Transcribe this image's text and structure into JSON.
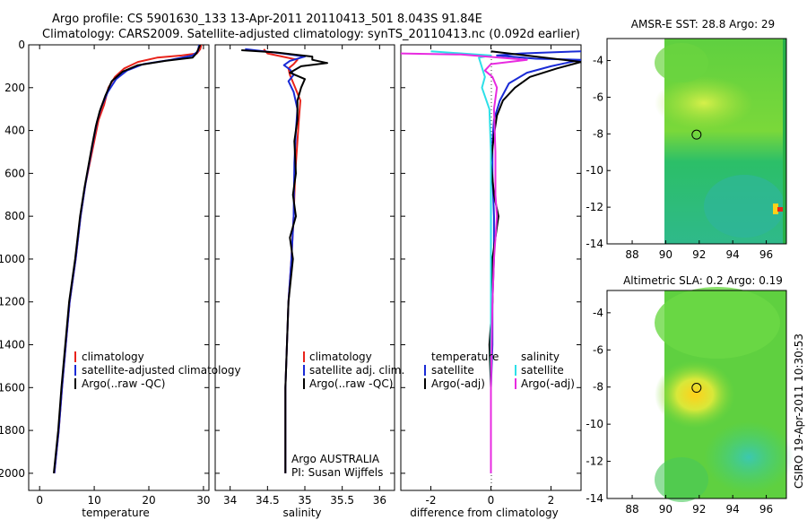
{
  "header": {
    "line1": "Argo profile: CS 5901630_133 13-Apr-2011 20110413_501 8.043S 91.84E",
    "line2": "Climatology: CARS2009. Satellite-adjusted climatology: synTS_20110413.nc (0.092d earlier)"
  },
  "side_label": "CSIRO 19-Apr-2011 10:30:53",
  "colors": {
    "climatology": "#e8231b",
    "satellite": "#1a2bd6",
    "argo": "#000000",
    "cyan": "#2de0e8",
    "magenta": "#e82be0"
  },
  "chart_data": [
    {
      "type": "line",
      "id": "temperature",
      "xlabel": "temperature",
      "ylabel": "",
      "xlim": [
        -2,
        31
      ],
      "ylim": [
        2080,
        0
      ],
      "xticks": [
        "0",
        "10",
        "20",
        "30"
      ],
      "xtick_values": [
        0,
        10,
        20,
        30
      ],
      "yticks": [
        "0",
        "200",
        "400",
        "600",
        "800",
        "1000",
        "1200",
        "1400",
        "1600",
        "1800",
        "2000"
      ],
      "ytick_values": [
        0,
        200,
        400,
        600,
        800,
        1000,
        1200,
        1400,
        1600,
        1800,
        2000
      ],
      "legend": [
        "climatology",
        "satellite-adjusted climatology",
        "Argo(..raw -QC)"
      ],
      "series": [
        {
          "name": "climatology",
          "color": "climatology",
          "points": [
            [
              29.6,
              0
            ],
            [
              29.4,
              20
            ],
            [
              28.8,
              40
            ],
            [
              26,
              50
            ],
            [
              21.5,
              60
            ],
            [
              18,
              80
            ],
            [
              15.5,
              110
            ],
            [
              13.8,
              150
            ],
            [
              12.6,
              200
            ],
            [
              11.8,
              280
            ],
            [
              10.8,
              350
            ],
            [
              10,
              450
            ],
            [
              9.2,
              550
            ],
            [
              8.4,
              650
            ],
            [
              7.5,
              800
            ],
            [
              6.6,
              1000
            ],
            [
              5.5,
              1200
            ],
            [
              4.8,
              1400
            ],
            [
              4.1,
              1600
            ],
            [
              3.5,
              1800
            ],
            [
              2.7,
              2000
            ]
          ]
        },
        {
          "name": "satellite-adjusted climatology",
          "color": "satellite",
          "points": [
            [
              29.2,
              0
            ],
            [
              29,
              30
            ],
            [
              28,
              50
            ],
            [
              24,
              70
            ],
            [
              19,
              90
            ],
            [
              16,
              120
            ],
            [
              14,
              160
            ],
            [
              12.5,
              220
            ],
            [
              11.3,
              290
            ],
            [
              10.5,
              360
            ],
            [
              9.8,
              450
            ],
            [
              9.1,
              550
            ],
            [
              8.4,
              650
            ],
            [
              7.5,
              800
            ],
            [
              6.6,
              1000
            ],
            [
              5.5,
              1200
            ],
            [
              4.8,
              1400
            ],
            [
              4.1,
              1600
            ],
            [
              3.5,
              1800
            ],
            [
              2.7,
              2000
            ]
          ]
        },
        {
          "name": "Argo(..raw -QC)",
          "color": "argo",
          "points": [
            [
              29.4,
              0
            ],
            [
              28.7,
              40
            ],
            [
              28,
              60
            ],
            [
              23,
              75
            ],
            [
              18,
              95
            ],
            [
              15.2,
              125
            ],
            [
              13.2,
              170
            ],
            [
              12,
              240
            ],
            [
              11,
              310
            ],
            [
              10.3,
              380
            ],
            [
              9.6,
              470
            ],
            [
              8.9,
              570
            ],
            [
              8.2,
              670
            ],
            [
              7.4,
              800
            ],
            [
              6.5,
              1000
            ],
            [
              5.4,
              1200
            ],
            [
              4.7,
              1400
            ],
            [
              4,
              1600
            ],
            [
              3.4,
              1800
            ],
            [
              2.6,
              2000
            ]
          ]
        }
      ]
    },
    {
      "type": "line",
      "id": "salinity",
      "xlabel": "salinity",
      "xlim": [
        33.8,
        36.2
      ],
      "ylim": [
        2080,
        0
      ],
      "xticks": [
        "34",
        "34.5",
        "35",
        "35.5",
        "36"
      ],
      "xtick_values": [
        34,
        34.5,
        35,
        35.5,
        36
      ],
      "legend": [
        "climatology",
        "satellite adj. clim.",
        "Argo(..raw -QC)"
      ],
      "annotations": [
        "Argo AUSTRALIA",
        "PI: Susan Wijffels"
      ],
      "series": [
        {
          "name": "climatology",
          "color": "climatology",
          "points": [
            [
              34.45,
              20
            ],
            [
              34.5,
              40
            ],
            [
              34.7,
              55
            ],
            [
              34.9,
              70
            ],
            [
              34.85,
              90
            ],
            [
              34.78,
              110
            ],
            [
              34.8,
              140
            ],
            [
              34.87,
              200
            ],
            [
              34.94,
              260
            ],
            [
              34.92,
              350
            ],
            [
              34.9,
              450
            ],
            [
              34.87,
              600
            ],
            [
              34.85,
              800
            ],
            [
              34.82,
              1000
            ],
            [
              34.78,
              1200
            ],
            [
              34.76,
              1400
            ],
            [
              34.74,
              1600
            ],
            [
              34.74,
              2000
            ]
          ]
        },
        {
          "name": "satellite adj. clim.",
          "color": "satellite",
          "points": [
            [
              34.2,
              20
            ],
            [
              34.7,
              40
            ],
            [
              35,
              55
            ],
            [
              34.8,
              75
            ],
            [
              34.72,
              95
            ],
            [
              34.8,
              115
            ],
            [
              34.85,
              140
            ],
            [
              34.78,
              170
            ],
            [
              34.85,
              220
            ],
            [
              34.9,
              300
            ],
            [
              34.88,
              400
            ],
            [
              34.86,
              550
            ],
            [
              34.85,
              800
            ],
            [
              34.82,
              1000
            ],
            [
              34.78,
              1200
            ],
            [
              34.76,
              1400
            ],
            [
              34.74,
              1600
            ],
            [
              34.74,
              2000
            ]
          ]
        },
        {
          "name": "Argo(..raw -QC)",
          "color": "argo",
          "points": [
            [
              34.15,
              25
            ],
            [
              34.6,
              35
            ],
            [
              35.1,
              55
            ],
            [
              35.1,
              70
            ],
            [
              35.3,
              85
            ],
            [
              34.95,
              100
            ],
            [
              34.8,
              130
            ],
            [
              35,
              160
            ],
            [
              34.95,
              200
            ],
            [
              34.9,
              260
            ],
            [
              34.9,
              350
            ],
            [
              34.86,
              450
            ],
            [
              34.88,
              600
            ],
            [
              34.84,
              700
            ],
            [
              34.88,
              800
            ],
            [
              34.8,
              900
            ],
            [
              34.84,
              1000
            ],
            [
              34.78,
              1200
            ],
            [
              34.76,
              1400
            ],
            [
              34.74,
              1600
            ],
            [
              34.74,
              2000
            ]
          ]
        }
      ]
    },
    {
      "type": "line",
      "id": "difference",
      "xlabel": "difference from climatology",
      "xlim": [
        -3,
        3
      ],
      "ylim": [
        2080,
        0
      ],
      "xticks": [
        "-2",
        "0",
        "2"
      ],
      "xtick_values": [
        -2,
        0,
        2
      ],
      "legend_titles": [
        "temperature",
        "salinity"
      ],
      "legend_left": [
        "satellite",
        "Argo(-adj)"
      ],
      "legend_right": [
        "satellite",
        "Argo(-adj)"
      ],
      "series": [
        {
          "name": "temperature satellite",
          "color": "satellite",
          "points": [
            [
              3,
              30
            ],
            [
              1,
              40
            ],
            [
              0.2,
              50
            ],
            [
              1.5,
              65
            ],
            [
              3,
              70
            ],
            [
              2,
              100
            ],
            [
              1.2,
              130
            ],
            [
              0.6,
              180
            ],
            [
              0.3,
              260
            ],
            [
              0.1,
              350
            ],
            [
              0.05,
              450
            ],
            [
              0.05,
              600
            ],
            [
              0.1,
              800
            ],
            [
              0.1,
              1000
            ],
            [
              0.05,
              1200
            ],
            [
              0.05,
              1400
            ],
            [
              0,
              1600
            ],
            [
              0,
              2000
            ]
          ]
        },
        {
          "name": "temperature Argo(-adj)",
          "color": "argo",
          "points": [
            [
              0,
              30
            ],
            [
              3,
              80
            ],
            [
              2.2,
              110
            ],
            [
              1.3,
              150
            ],
            [
              0.8,
              200
            ],
            [
              0.4,
              260
            ],
            [
              0.2,
              330
            ],
            [
              0.1,
              420
            ],
            [
              0,
              550
            ],
            [
              0.1,
              700
            ],
            [
              0.25,
              800
            ],
            [
              0.15,
              900
            ],
            [
              0.05,
              1000
            ],
            [
              0.05,
              1200
            ],
            [
              -0.05,
              1400
            ],
            [
              0,
              1600
            ],
            [
              0,
              1800
            ],
            [
              0,
              2000
            ]
          ]
        },
        {
          "name": "salinity satellite",
          "color": "cyan",
          "points": [
            [
              -2,
              30
            ],
            [
              0,
              50
            ],
            [
              -0.4,
              60
            ],
            [
              -0.2,
              150
            ],
            [
              -0.3,
              200
            ],
            [
              -0.05,
              300
            ],
            [
              0,
              500
            ],
            [
              0,
              700
            ],
            [
              0,
              1000
            ],
            [
              0,
              1400
            ],
            [
              0,
              2000
            ]
          ]
        },
        {
          "name": "salinity Argo(-adj)",
          "color": "magenta",
          "points": [
            [
              -3,
              40
            ],
            [
              -1,
              45
            ],
            [
              1.2,
              70
            ],
            [
              0,
              90
            ],
            [
              -0.2,
              120
            ],
            [
              0.05,
              150
            ],
            [
              0.2,
              200
            ],
            [
              0.1,
              300
            ],
            [
              0.15,
              500
            ],
            [
              0.15,
              700
            ],
            [
              0.2,
              800
            ],
            [
              0.1,
              1000
            ],
            [
              0.05,
              1200
            ],
            [
              0,
              1600
            ],
            [
              0,
              2000
            ]
          ]
        }
      ]
    },
    {
      "type": "heatmap",
      "id": "sst-map",
      "title": "AMSR-E SST: 28.8 Argo: 29",
      "xlim": [
        86.5,
        97.2
      ],
      "ylim": [
        -14,
        -2.8
      ],
      "xticks": [
        "88",
        "90",
        "92",
        "94",
        "96"
      ],
      "yticks": [
        "-4",
        "-6",
        "-8",
        "-10",
        "-12",
        "-14"
      ],
      "argo_position": [
        91.84,
        -8.04
      ]
    },
    {
      "type": "heatmap",
      "id": "sla-map",
      "title": "Altimetric SLA: 0.2 Argo: 0.19",
      "xlim": [
        86.5,
        97.2
      ],
      "ylim": [
        -14,
        -2.8
      ],
      "xticks": [
        "88",
        "90",
        "92",
        "94",
        "96"
      ],
      "yticks": [
        "-4",
        "-6",
        "-8",
        "-10",
        "-12",
        "-14"
      ],
      "argo_position": [
        91.84,
        -8.04
      ]
    }
  ]
}
